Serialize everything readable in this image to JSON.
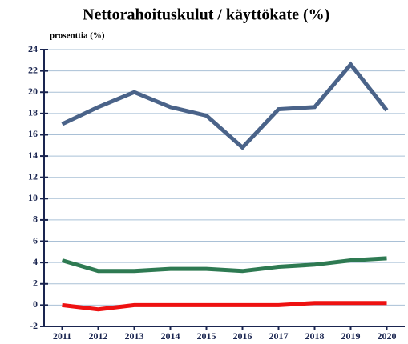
{
  "chart_data": {
    "type": "line",
    "title": "Nettorahoituskulut / käyttökate (%)",
    "subtitle": "prosenttia (%)",
    "categories": [
      "2011",
      "2012",
      "2013",
      "2014",
      "2015",
      "2016",
      "2017",
      "2018",
      "2019",
      "2020"
    ],
    "series": [
      {
        "color": "#4a6389",
        "values": [
          17.0,
          18.6,
          20.0,
          18.6,
          17.8,
          14.8,
          18.4,
          18.6,
          22.6,
          18.3
        ]
      },
      {
        "color": "#2e7a52",
        "values": [
          4.2,
          3.2,
          3.2,
          3.4,
          3.4,
          3.2,
          3.6,
          3.8,
          4.2,
          4.4
        ]
      },
      {
        "color": "#ee1111",
        "values": [
          0,
          -0.4,
          0,
          0,
          0,
          0,
          0,
          0.2,
          0.2,
          0.2
        ]
      }
    ],
    "ylim": [
      -2,
      24
    ],
    "yticks": [
      -2,
      0,
      2,
      4,
      6,
      8,
      10,
      12,
      14,
      16,
      18,
      20,
      22,
      24
    ],
    "grid": true
  }
}
